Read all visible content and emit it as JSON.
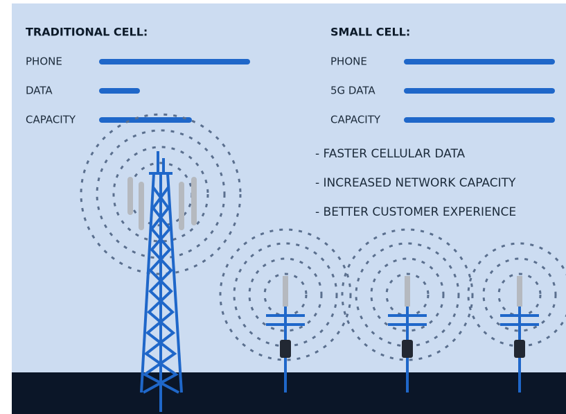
{
  "traditional": {
    "title": "TRADITIONAL CELL:",
    "labels": [
      "PHONE",
      "DATA",
      "CAPACITY"
    ]
  },
  "small": {
    "title": "SMALL CELL:",
    "labels": [
      "PHONE",
      "5G DATA",
      "CAPACITY"
    ]
  },
  "benefits": [
    "- FASTER CELLULAR DATA",
    "- INCREASED NETWORK CAPACITY",
    "- BETTER CUSTOMER EXPERIENCE"
  ]
}
